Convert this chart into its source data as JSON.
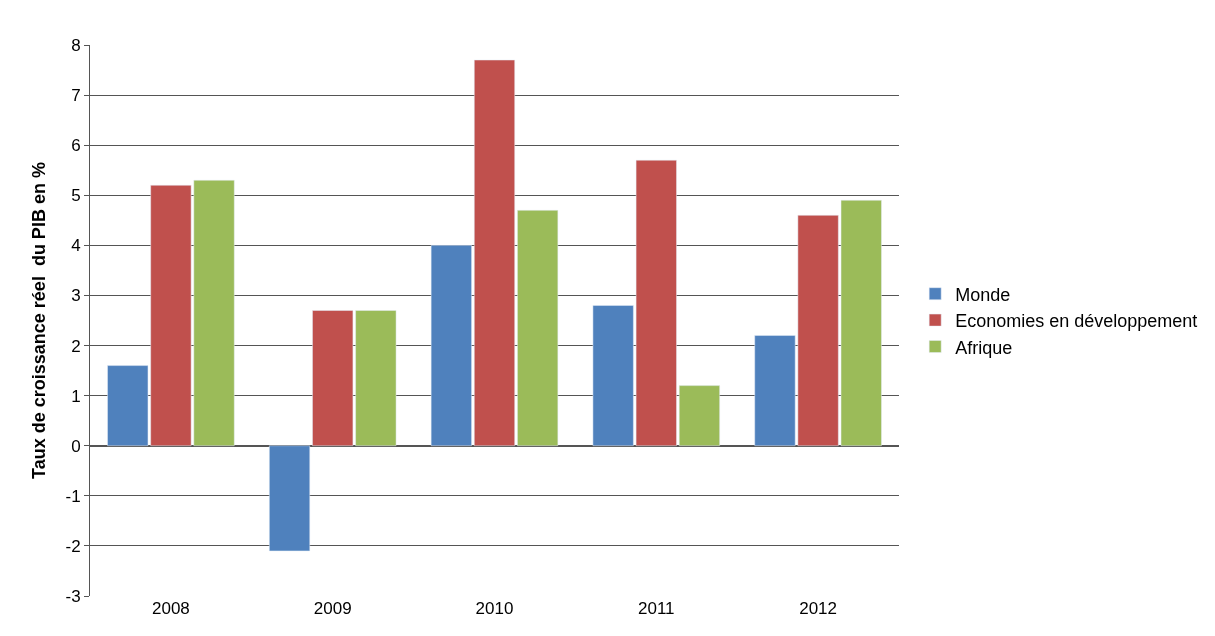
{
  "chart_data": {
    "type": "bar",
    "ylabel": "Taux de croissance réel  du PIB en %",
    "categories": [
      "2008",
      "2009",
      "2010",
      "2011",
      "2012"
    ],
    "series": [
      {
        "name": "Monde",
        "color": "#4f81bd",
        "values": [
          1.6,
          -2.1,
          4.0,
          2.8,
          2.2
        ]
      },
      {
        "name": "Economies en développement",
        "color": "#c0504d",
        "values": [
          5.2,
          2.7,
          7.7,
          5.7,
          4.6
        ]
      },
      {
        "name": "Afrique",
        "color": "#9bbb59",
        "values": [
          5.3,
          2.7,
          4.7,
          1.2,
          4.9
        ]
      }
    ],
    "ylim": [
      -3,
      8
    ],
    "yticks": [
      -3,
      -2,
      -1,
      0,
      1,
      2,
      3,
      4,
      5,
      6,
      7,
      8
    ],
    "grid": "y",
    "legend": "right"
  }
}
